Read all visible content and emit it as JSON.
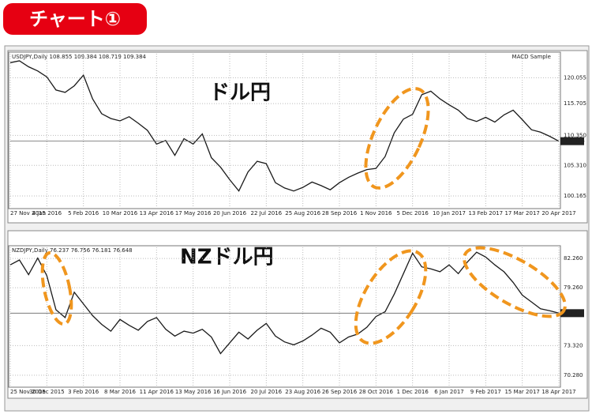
{
  "page_title": "チャート①",
  "chart_data": [
    {
      "type": "line",
      "header": "USDJPY,Daily 108.855 109.384 108.719 109.384",
      "indicator": "MACD Sample",
      "annotation": "ドル円",
      "categories": [
        "27 Nov 2015",
        null,
        null,
        null,
        "4 Jan 2016",
        null,
        null,
        null,
        "5 Feb 2016",
        null,
        null,
        null,
        "10 Mar 2016",
        null,
        null,
        null,
        "13 Apr 2016",
        null,
        null,
        null,
        "17 May 2016",
        null,
        null,
        null,
        "20 Jun 2016",
        null,
        null,
        null,
        "22 Jul 2016",
        null,
        null,
        null,
        "25 Aug 2016",
        null,
        null,
        null,
        "28 Sep 2016",
        null,
        null,
        null,
        "1 Nov 2016",
        null,
        null,
        null,
        "5 Dec 2016",
        null,
        null,
        null,
        "10 Jan 2017",
        null,
        null,
        null,
        "13 Feb 2017",
        null,
        null,
        null,
        "17 Mar 2017",
        null,
        null,
        null,
        "20 Apr 2017"
      ],
      "values": [
        122.6,
        122.9,
        121.9,
        121.2,
        120.2,
        118.0,
        117.6,
        118.7,
        120.5,
        116.5,
        114.0,
        113.2,
        112.8,
        113.5,
        112.4,
        111.2,
        108.9,
        109.5,
        107.0,
        109.8,
        108.9,
        110.6,
        106.6,
        105.0,
        102.9,
        101.0,
        104.2,
        106.0,
        105.6,
        102.4,
        101.5,
        101.0,
        101.6,
        102.5,
        101.9,
        101.2,
        102.4,
        103.3,
        104.0,
        104.6,
        104.8,
        106.8,
        110.8,
        113.1,
        113.9,
        117.2,
        117.8,
        116.5,
        115.5,
        114.6,
        113.2,
        112.7,
        113.4,
        112.6,
        113.8,
        114.6,
        113.0,
        111.3,
        110.9,
        110.2,
        109.384
      ],
      "color": "#1a1a1a",
      "last_price": 109.384,
      "ylim": [
        98.3,
        124.1
      ],
      "yticks": [
        120.055,
        115.705,
        {
          "value": 110.35,
          "label": "110.350"
        },
        {
          "value": 105.31,
          "label": "105.310"
        },
        100.165
      ],
      "grid": true
    },
    {
      "type": "line",
      "header": "NZDJPY,Daily 76.237 76.756 76.181 76.648",
      "annotation": "NZドル円",
      "categories": [
        "25 Nov 2015",
        null,
        null,
        null,
        "30 Dec 2015",
        null,
        null,
        null,
        "3 Feb 2016",
        null,
        null,
        null,
        "8 Mar 2016",
        null,
        null,
        null,
        "11 Apr 2016",
        null,
        null,
        null,
        "13 May 2016",
        null,
        null,
        null,
        "16 Jun 2016",
        null,
        null,
        null,
        "20 Jul 2016",
        null,
        null,
        null,
        "23 Aug 2016",
        null,
        null,
        null,
        "26 Sep 2016",
        null,
        null,
        null,
        "28 Oct 2016",
        null,
        null,
        null,
        "1 Dec 2016",
        null,
        null,
        null,
        "6 Jan 2017",
        null,
        null,
        null,
        "9 Feb 2017",
        null,
        null,
        null,
        "15 Mar 2017",
        null,
        null,
        null,
        "18 Apr 2017"
      ],
      "values": [
        81.6,
        82.1,
        80.6,
        82.3,
        80.5,
        77.0,
        76.2,
        78.8,
        77.6,
        76.4,
        75.5,
        74.8,
        76.0,
        75.4,
        74.9,
        75.8,
        76.2,
        75.0,
        74.3,
        74.8,
        74.6,
        75.0,
        74.2,
        72.5,
        73.6,
        74.7,
        74.0,
        74.9,
        75.6,
        74.3,
        73.7,
        73.4,
        73.8,
        74.4,
        75.1,
        74.7,
        73.6,
        74.2,
        74.5,
        75.2,
        76.3,
        76.8,
        78.6,
        80.7,
        82.8,
        81.4,
        81.2,
        80.9,
        81.6,
        80.7,
        81.9,
        82.9,
        82.4,
        81.6,
        80.9,
        79.8,
        78.5,
        77.8,
        77.1,
        76.9,
        76.648
      ],
      "color": "#1a1a1a",
      "last_price": 76.648,
      "ylim": [
        69.22,
        83.4
      ],
      "yticks": [
        {
          "value": 82.26,
          "label": "82.260"
        },
        {
          "value": 79.26,
          "label": "79.260"
        },
        {
          "value": 73.32,
          "label": "73.320"
        },
        {
          "value": 70.28,
          "label": "70.280"
        }
      ],
      "grid": true
    }
  ]
}
